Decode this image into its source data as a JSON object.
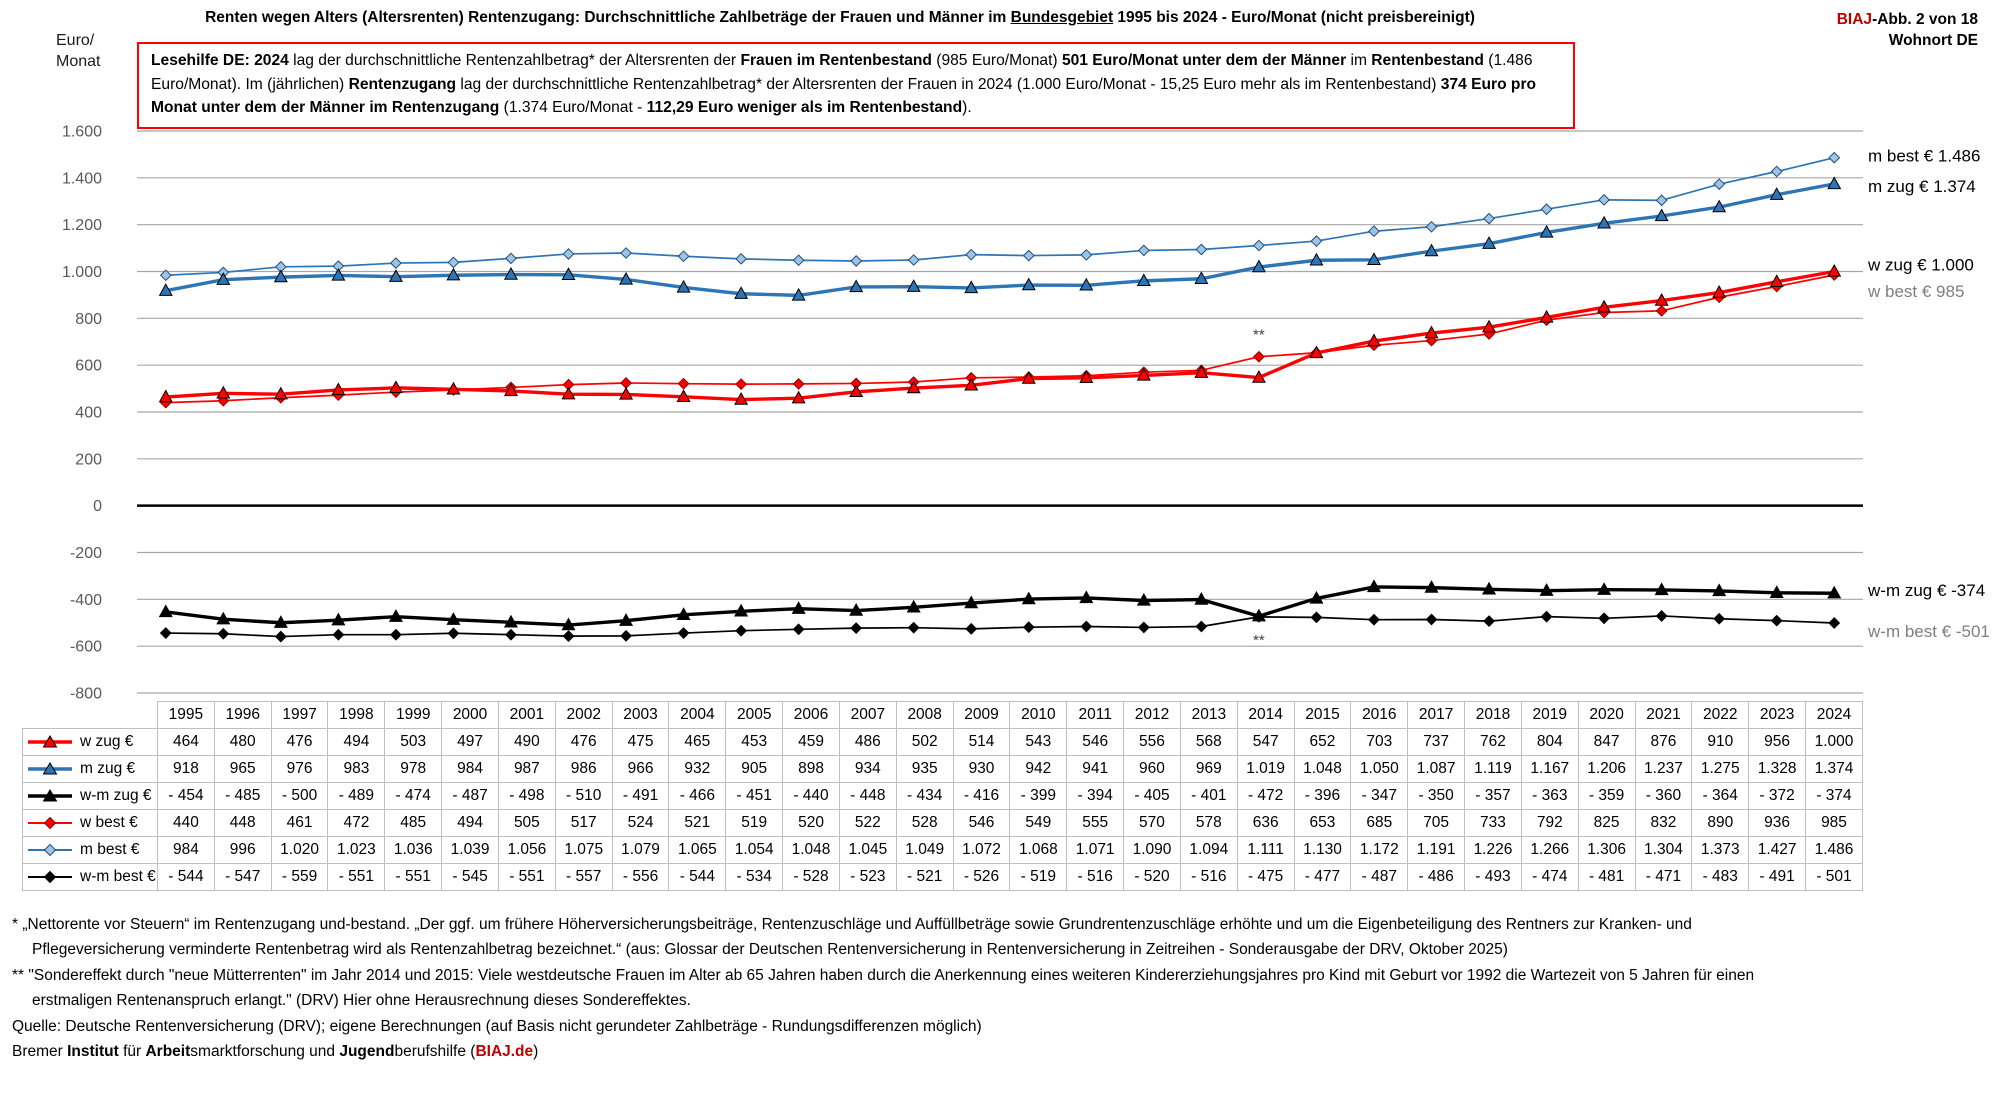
{
  "header": {
    "title": [
      {
        "t": "Renten wegen Alters (Altersrenten) Rentenzugang: Durchschnittliche Zahlbeträge der Frauen und Männer im ",
        "b": true
      },
      {
        "t": "Bundesgebiet",
        "b": true,
        "u": true
      },
      {
        "t": " 1995 bis 2024 - Euro/Monat ",
        "b": true
      },
      {
        "t": "(nicht preisbereinigt)",
        "b": false
      }
    ],
    "figure_ref": [
      {
        "t": "BIAJ",
        "b": true,
        "c": "red"
      },
      {
        "t": "-Abb. 2 von 18",
        "b": true
      }
    ],
    "location": "Wohnort DE"
  },
  "axis": {
    "unit_line1": "Euro/",
    "unit_line2": "Monat"
  },
  "lesehilfe": [
    {
      "t": "Lesehilfe DE: 2024",
      "b": true
    },
    {
      "t": " lag der durchschnittliche Rentenzahlbetrag*  der Altersrenten der ",
      "b": false
    },
    {
      "t": "Frauen im Rentenbestand",
      "b": true
    },
    {
      "t": " (985 Euro/Monat) ",
      "b": false
    },
    {
      "t": "501 Euro/Monat unter dem der Männer",
      "b": true
    },
    {
      "t": " im ",
      "b": false
    },
    {
      "t": "Rentenbestand",
      "b": true
    },
    {
      "t": " (1.486 Euro/Monat).  Im (jährlichen) ",
      "b": false
    },
    {
      "t": "Rentenzugang",
      "b": true
    },
    {
      "t": " lag der durchschnittliche Rentenzahlbetrag* der Altersrenten der Frauen in 2024 (1.000 Euro/Monat - 15,25 Euro mehr als im Rentenbestand) ",
      "b": false
    },
    {
      "t": "374 Euro pro Monat unter dem der Männer im Rentenzugang",
      "b": true
    },
    {
      "t": " (1.374 Euro/Monat - ",
      "b": false
    },
    {
      "t": "112,29 Euro weniger als im Rentenbestand",
      "b": true
    },
    {
      "t": ").",
      "b": false
    }
  ],
  "chart_data": {
    "type": "line",
    "title": "Renten wegen Alters (Altersrenten) Rentenzugang: Durchschnittliche Zahlbeträge der Frauen und Männer im Bundesgebiet 1995 bis 2024 - Euro/Monat (nicht preisbereinigt)",
    "ylabel": "Euro/Monat",
    "ylim": [
      -800,
      1600
    ],
    "ytick_step": 200,
    "grid": true,
    "x": [
      1995,
      1996,
      1997,
      1998,
      1999,
      2000,
      2001,
      2002,
      2003,
      2004,
      2005,
      2006,
      2007,
      2008,
      2009,
      2010,
      2011,
      2012,
      2013,
      2014,
      2015,
      2016,
      2017,
      2018,
      2019,
      2020,
      2021,
      2022,
      2023,
      2024
    ],
    "series": [
      {
        "name": "w zug €",
        "color": "#FF0000",
        "marker": "triangle",
        "thick": true,
        "end_label": "w zug € 1.000",
        "label_gray": false,
        "values": [
          464,
          480,
          476,
          494,
          503,
          497,
          490,
          476,
          475,
          465,
          453,
          459,
          486,
          502,
          514,
          543,
          546,
          556,
          568,
          547,
          652,
          703,
          737,
          762,
          804,
          847,
          876,
          910,
          956,
          1000
        ]
      },
      {
        "name": "m zug €",
        "color": "#2E75B6",
        "marker": "triangle",
        "thick": true,
        "end_label": "m zug € 1.374",
        "label_gray": false,
        "values": [
          918,
          965,
          976,
          983,
          978,
          984,
          987,
          986,
          966,
          932,
          905,
          898,
          934,
          935,
          930,
          942,
          941,
          960,
          969,
          1019,
          1048,
          1050,
          1087,
          1119,
          1167,
          1206,
          1237,
          1275,
          1328,
          1374
        ]
      },
      {
        "name": "w-m zug €",
        "color": "#000000",
        "marker": "triangle",
        "thick": true,
        "end_label": "w-m zug € -374",
        "label_gray": false,
        "values": [
          -454,
          -485,
          -500,
          -489,
          -474,
          -487,
          -498,
          -510,
          -491,
          -466,
          -451,
          -440,
          -448,
          -434,
          -416,
          -399,
          -394,
          -405,
          -401,
          -472,
          -396,
          -347,
          -350,
          -357,
          -363,
          -359,
          -360,
          -364,
          -372,
          -374
        ]
      },
      {
        "name": "w best €",
        "color": "#FF0000",
        "marker": "diamond",
        "thick": false,
        "end_label": "w best € 985",
        "label_gray": true,
        "marker_stroke": "#8B0000",
        "values": [
          440,
          448,
          461,
          472,
          485,
          494,
          505,
          517,
          524,
          521,
          519,
          520,
          522,
          528,
          546,
          549,
          555,
          570,
          578,
          636,
          653,
          685,
          705,
          733,
          792,
          825,
          832,
          890,
          936,
          985
        ]
      },
      {
        "name": "m best €",
        "color": "#2E75B6",
        "marker": "diamond",
        "thick": false,
        "end_label": "m best € 1.486",
        "label_gray": false,
        "marker_fill": "#9DC3E6",
        "marker_stroke": "#1F4E79",
        "values": [
          984,
          996,
          1020,
          1023,
          1036,
          1039,
          1056,
          1075,
          1079,
          1065,
          1054,
          1048,
          1045,
          1049,
          1072,
          1068,
          1071,
          1090,
          1094,
          1111,
          1130,
          1172,
          1191,
          1226,
          1266,
          1306,
          1304,
          1373,
          1427,
          1486
        ]
      },
      {
        "name": "w-m best €",
        "color": "#000000",
        "marker": "diamond",
        "thick": false,
        "end_label": "w-m best € -501",
        "label_gray": true,
        "values": [
          -544,
          -547,
          -559,
          -551,
          -551,
          -545,
          -551,
          -557,
          -556,
          -544,
          -534,
          -528,
          -523,
          -521,
          -526,
          -519,
          -516,
          -520,
          -516,
          -475,
          -477,
          -487,
          -486,
          -493,
          -474,
          -481,
          -471,
          -483,
          -491,
          -501
        ]
      }
    ],
    "annotations": [
      {
        "text": "**",
        "year": 2014,
        "value": 730
      },
      {
        "text": "**",
        "year": 2014,
        "value": -574
      }
    ],
    "colors": {
      "red": "#FF0000",
      "blue": "#2E75B6",
      "black": "#000000",
      "gridline": "#A6A6A6",
      "tick_text": "#595959",
      "gray_label": "#7F7F7F",
      "table_border": "#BFBFBF",
      "biaj_red": "#C00000"
    }
  },
  "footnotes": {
    "lines": [
      {
        "indent": 0,
        "segs": [
          {
            "t": "*  „Nettorente vor Steuern“ im Rentenzugang und-bestand. „Der ggf. um frühere Höherversicherungsbeiträge, Rentenzuschläge und Auffüllbeträge sowie Grundrentenzuschläge erhöhte und um die Eigenbeteiligung  des Rentners zur Kranken- und",
            "b": false
          }
        ]
      },
      {
        "indent": 1,
        "segs": [
          {
            "t": "Pflegeversicherung verminderte Rentenbetrag wird als Rentenzahlbetrag bezeichnet.“ (aus: Glossar der Deutschen Rentenversicherung in Rentenversicherung in Zeitreihen - Sonderausgabe der DRV, Oktober 2025)",
            "b": false
          }
        ]
      },
      {
        "indent": 0,
        "segs": [
          {
            "t": "** \"Sondereffekt durch \"neue Mütterrenten\" im Jahr 2014 und 2015: Viele westdeutsche Frauen im Alter ab 65 Jahren haben durch die Anerkennung eines weiteren Kindererziehungsjahres pro Kind mit Geburt vor 1992 die Wartezeit von 5 Jahren für einen",
            "b": false
          }
        ]
      },
      {
        "indent": 1,
        "segs": [
          {
            "t": "erstmaligen Rentenanspruch erlangt.\" (DRV) Hier ohne Herausrechnung dieses Sondereffektes.",
            "b": false
          }
        ]
      },
      {
        "indent": 0,
        "segs": [
          {
            "t": " Quelle: Deutsche Rentenversicherung (DRV);  eigene  Berechnungen (auf Basis nicht gerundeter Zahlbeträge - Rundungsdifferenzen möglich)",
            "b": false
          }
        ]
      },
      {
        "indent": 0,
        "segs": [
          {
            "t": "Bremer ",
            "b": false
          },
          {
            "t": "Institut",
            "b": true
          },
          {
            "t": " für ",
            "b": false
          },
          {
            "t": "Arbeit",
            "b": true
          },
          {
            "t": "smarktforschung und ",
            "b": false
          },
          {
            "t": "Jugend",
            "b": true
          },
          {
            "t": "berufshilfe (",
            "b": false
          },
          {
            "t": "BIAJ.de",
            "b": true,
            "c": "red",
            "link": true
          },
          {
            "t": ")",
            "b": false
          }
        ]
      }
    ]
  }
}
